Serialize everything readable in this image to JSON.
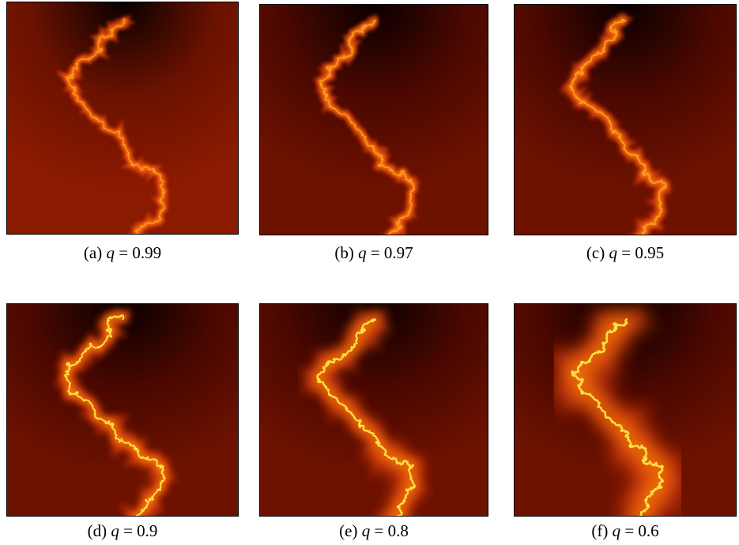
{
  "figure": {
    "panels": [
      {
        "tag": "(a)",
        "symbol": "q",
        "relation": "=",
        "value": "0.99"
      },
      {
        "tag": "(b)",
        "symbol": "q",
        "relation": "=",
        "value": "0.97"
      },
      {
        "tag": "(c)",
        "symbol": "q",
        "relation": "=",
        "value": "0.95"
      },
      {
        "tag": "(d)",
        "symbol": "q",
        "relation": "=",
        "value": "0.9"
      },
      {
        "tag": "(e)",
        "symbol": "q",
        "relation": "=",
        "value": "0.8"
      },
      {
        "tag": "(f)",
        "symbol": "q",
        "relation": "=",
        "value": "0.6"
      }
    ]
  }
}
